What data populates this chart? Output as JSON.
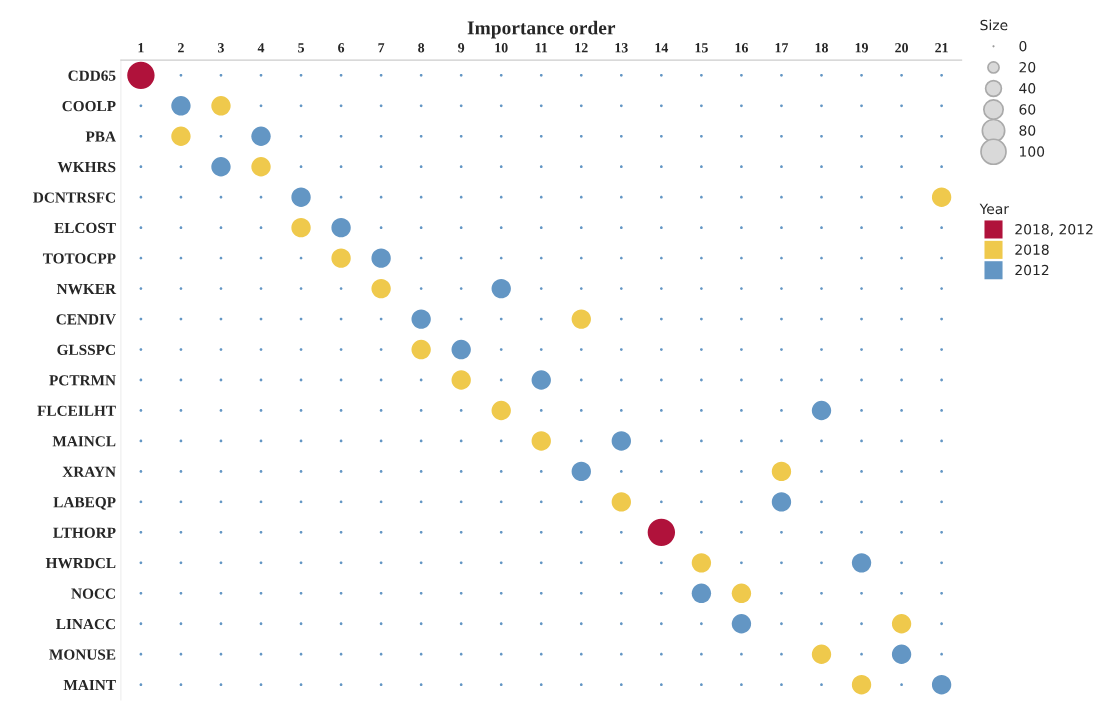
{
  "chart_data": {
    "type": "bubble",
    "orientation": "horizontal",
    "xlabel": "Importance order",
    "legend_title": "Year",
    "annotations": [
      "Size",
      "0"
    ],
    "categories": [
      "CDD65",
      "COOLP",
      "PBA",
      "WKHRS",
      "DCNTRSFC",
      "ELCOST",
      "TOTOCPP",
      "NWKER",
      "CENDIV",
      "GLSSPC",
      "PCTRMN",
      "FLCEILHT",
      "MAINCL",
      "XRAYN",
      "LABEQP",
      "LTHORP",
      "HWRDCL",
      "NOCC",
      "LINACC",
      "MONUSE",
      "MAINT"
    ],
    "series": [
      {
        "type": "scatter",
        "color": "#6396c4",
        "values": [
          null,
          1,
          1,
          1,
          1,
          1,
          1,
          1,
          1,
          1,
          1,
          1,
          1,
          1,
          1,
          1,
          1,
          1,
          1,
          1,
          1
        ]
      },
      {
        "type": "scatter",
        "color": "#6396c4",
        "values": [
          2,
          null,
          null,
          2,
          2,
          2,
          2,
          2,
          2,
          2,
          2,
          2,
          2,
          2,
          2,
          2,
          2,
          2,
          2,
          2,
          2
        ]
      },
      {
        "type": "scatter",
        "color": "#6396c4",
        "values": [
          3,
          null,
          3,
          null,
          3,
          3,
          3,
          3,
          3,
          3,
          3,
          3,
          3,
          3,
          3,
          3,
          3,
          3,
          3,
          3,
          3
        ]
      },
      {
        "type": "scatter",
        "color": "#6396c4",
        "values": [
          4,
          4,
          null,
          null,
          4,
          4,
          4,
          4,
          4,
          4,
          4,
          4,
          4,
          4,
          4,
          4,
          4,
          4,
          4,
          4,
          4
        ]
      },
      {
        "type": "scatter",
        "color": "#6396c4",
        "values": [
          5,
          5,
          5,
          5,
          null,
          null,
          5,
          5,
          5,
          5,
          5,
          5,
          5,
          5,
          5,
          5,
          5,
          5,
          5,
          5,
          5
        ]
      },
      {
        "type": "scatter",
        "color": "#6396c4",
        "values": [
          6,
          6,
          6,
          6,
          6,
          null,
          null,
          6,
          6,
          6,
          6,
          6,
          6,
          6,
          6,
          6,
          6,
          6,
          6,
          6,
          6
        ]
      },
      {
        "type": "scatter",
        "color": "#6396c4",
        "values": [
          7,
          7,
          7,
          7,
          7,
          7,
          null,
          null,
          7,
          7,
          7,
          7,
          7,
          7,
          7,
          7,
          7,
          7,
          7,
          7,
          7
        ]
      },
      {
        "type": "scatter",
        "color": "#6396c4",
        "values": [
          8,
          8,
          8,
          8,
          8,
          8,
          8,
          8,
          null,
          null,
          8,
          8,
          8,
          8,
          8,
          8,
          8,
          8,
          8,
          8,
          8
        ]
      },
      {
        "type": "scatter",
        "color": "#6396c4",
        "values": [
          9,
          9,
          9,
          9,
          9,
          9,
          9,
          9,
          9,
          null,
          null,
          9,
          9,
          9,
          9,
          9,
          9,
          9,
          9,
          9,
          9
        ]
      },
      {
        "type": "scatter",
        "color": "#6396c4",
        "values": [
          10,
          10,
          10,
          10,
          10,
          10,
          10,
          null,
          10,
          10,
          10,
          null,
          10,
          10,
          10,
          10,
          10,
          10,
          10,
          10,
          10
        ]
      },
      {
        "type": "scatter",
        "color": "#6396c4",
        "values": [
          11,
          11,
          11,
          11,
          11,
          11,
          11,
          11,
          11,
          11,
          null,
          11,
          null,
          11,
          11,
          11,
          11,
          11,
          11,
          11,
          11
        ]
      },
      {
        "type": "scatter",
        "color": "#6396c4",
        "values": [
          12,
          12,
          12,
          12,
          12,
          12,
          12,
          12,
          null,
          12,
          12,
          12,
          12,
          null,
          12,
          12,
          12,
          12,
          12,
          12,
          12
        ]
      },
      {
        "type": "scatter",
        "color": "#6396c4",
        "values": [
          13,
          13,
          13,
          13,
          13,
          13,
          13,
          13,
          13,
          13,
          13,
          13,
          null,
          13,
          null,
          13,
          13,
          13,
          13,
          13,
          13
        ]
      },
      {
        "type": "scatter",
        "color": "#6396c4",
        "values": [
          14,
          14,
          14,
          14,
          14,
          14,
          14,
          14,
          14,
          14,
          14,
          14,
          14,
          14,
          14,
          null,
          14,
          14,
          14,
          14,
          14
        ]
      },
      {
        "type": "scatter",
        "color": "#6396c4",
        "values": [
          15,
          15,
          15,
          15,
          15,
          15,
          15,
          15,
          15,
          15,
          15,
          15,
          15,
          15,
          15,
          15,
          null,
          null,
          15,
          15,
          15
        ]
      },
      {
        "type": "scatter",
        "color": "#6396c4",
        "values": [
          16,
          16,
          16,
          16,
          16,
          16,
          16,
          16,
          16,
          16,
          16,
          16,
          16,
          16,
          16,
          16,
          16,
          null,
          null,
          16,
          16
        ]
      },
      {
        "type": "scatter",
        "color": "#6396c4",
        "values": [
          17,
          17,
          17,
          17,
          17,
          17,
          17,
          17,
          17,
          17,
          17,
          17,
          17,
          null,
          null,
          17,
          17,
          17,
          17,
          17,
          17
        ]
      },
      {
        "type": "scatter",
        "color": "#6396c4",
        "values": [
          18,
          18,
          18,
          18,
          18,
          18,
          18,
          18,
          18,
          18,
          18,
          null,
          18,
          18,
          18,
          18,
          18,
          18,
          18,
          null,
          18
        ]
      },
      {
        "type": "scatter",
        "color": "#6396c4",
        "values": [
          19,
          19,
          19,
          19,
          19,
          19,
          19,
          19,
          19,
          19,
          19,
          19,
          19,
          19,
          19,
          19,
          null,
          19,
          19,
          19,
          null
        ]
      },
      {
        "type": "scatter",
        "color": "#6396c4",
        "values": [
          20,
          20,
          20,
          20,
          20,
          20,
          20,
          20,
          20,
          20,
          20,
          20,
          20,
          20,
          20,
          20,
          20,
          20,
          null,
          null,
          20
        ]
      },
      {
        "type": "scatter",
        "color": "#6396c4",
        "values": [
          21,
          21,
          21,
          21,
          null,
          21,
          21,
          21,
          21,
          21,
          21,
          21,
          21,
          21,
          21,
          21,
          21,
          21,
          21,
          21,
          null
        ]
      },
      {
        "name": "2018, 2012",
        "color": "#b0123b",
        "values": [
          1,
          null,
          null,
          null,
          null,
          null,
          null,
          null,
          null,
          null,
          null,
          null,
          null,
          null,
          null,
          14,
          null,
          null,
          null,
          null,
          null
        ],
        "sizes": [
          120,
          null,
          null,
          null,
          null,
          null,
          null,
          null,
          null,
          null,
          null,
          null,
          null,
          null,
          null,
          120,
          null,
          null,
          null,
          null,
          null
        ]
      },
      {
        "name": "2018",
        "color": "#efc94c",
        "values": [
          null,
          3,
          2,
          4,
          21,
          5,
          6,
          7,
          12,
          8,
          9,
          10,
          11,
          17,
          13,
          null,
          15,
          16,
          20,
          18,
          19
        ],
        "sizes": [
          null,
          60,
          60,
          60,
          60,
          60,
          60,
          60,
          60,
          60,
          60,
          60,
          60,
          60,
          60,
          null,
          60,
          60,
          60,
          60,
          60
        ]
      },
      {
        "name": "2012",
        "color": "#6396c4",
        "values": [
          null,
          2,
          4,
          3,
          5,
          6,
          7,
          10,
          8,
          9,
          11,
          18,
          13,
          12,
          17,
          null,
          19,
          15,
          16,
          20,
          21
        ],
        "sizes": [
          null,
          60,
          60,
          60,
          60,
          60,
          60,
          60,
          60,
          60,
          60,
          60,
          60,
          60,
          60,
          null,
          60,
          60,
          60,
          60,
          60
        ]
      }
    ],
    "size_legend": [
      20,
      40,
      60,
      80,
      100
    ],
    "xlim": [
      0.5,
      21.5
    ],
    "xticks": [
      1,
      2,
      3,
      4,
      5,
      6,
      7,
      8,
      9,
      10,
      11,
      12,
      13,
      14,
      15,
      16,
      17,
      18,
      19,
      20,
      21
    ],
    "legend": "right"
  }
}
